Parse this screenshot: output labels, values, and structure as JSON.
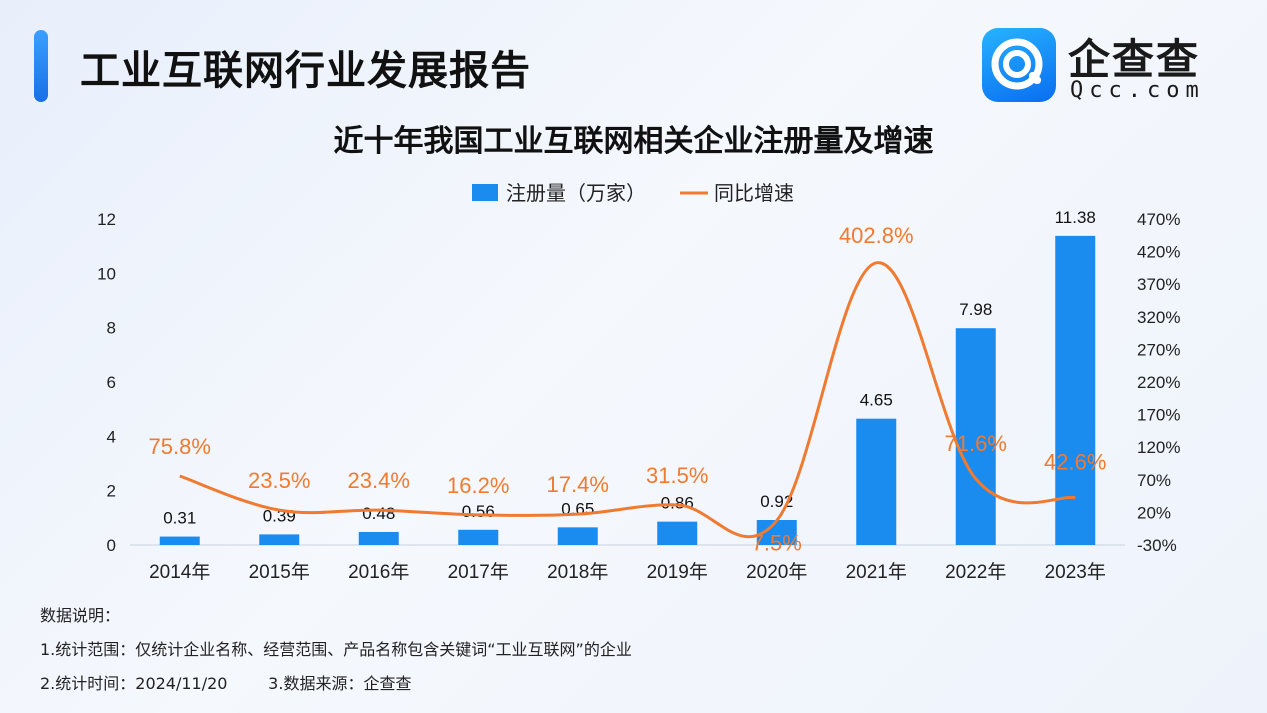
{
  "header": {
    "report_title": "工业互联网行业发展报告",
    "logo_name": "企查查",
    "logo_domain": "Qcc.com",
    "accent_color": "#1a7ff0"
  },
  "chart_data": {
    "type": "bar",
    "title": "近十年我国工业互联网相关企业注册量及增速",
    "categories": [
      "2014年",
      "2015年",
      "2016年",
      "2017年",
      "2018年",
      "2019年",
      "2020年",
      "2021年",
      "2022年",
      "2023年"
    ],
    "series": [
      {
        "name": "注册量（万家）",
        "type": "bar",
        "axis": "left",
        "color": "#1a8cf0",
        "values": [
          0.31,
          0.39,
          0.48,
          0.56,
          0.65,
          0.86,
          0.92,
          4.65,
          7.98,
          11.38
        ],
        "labels": [
          "0.31",
          "0.39",
          "0.48",
          "0.56",
          "0.65",
          "0.86",
          "0.92",
          "4.65",
          "7.98",
          "11.38"
        ]
      },
      {
        "name": "同比增速",
        "type": "line",
        "axis": "right",
        "color": "#f07a30",
        "values": [
          75.8,
          23.5,
          23.4,
          16.2,
          17.4,
          31.5,
          7.5,
          402.8,
          71.6,
          42.6
        ],
        "labels": [
          "75.8%",
          "23.5%",
          "23.4%",
          "16.2%",
          "17.4%",
          "31.5%",
          "7.5%",
          "402.8%",
          "71.6%",
          "42.6%"
        ]
      }
    ],
    "y_left": {
      "min": 0,
      "max": 12,
      "ticks": [
        "0",
        "2",
        "4",
        "6",
        "8",
        "10",
        "12"
      ]
    },
    "y_right": {
      "min": -30,
      "max": 470,
      "ticks": [
        "-30%",
        "20%",
        "70%",
        "120%",
        "170%",
        "220%",
        "270%",
        "320%",
        "370%",
        "420%",
        "470%"
      ]
    },
    "legend_position": "top-center",
    "grid": false
  },
  "notes": {
    "heading": "数据说明：",
    "line1": "1.统计范围：仅统计企业名称、经营范围、产品名称包含关键词“工业互联网”的企业",
    "line2": "2.统计时间：2024/11/20        3.数据来源：企查查"
  }
}
